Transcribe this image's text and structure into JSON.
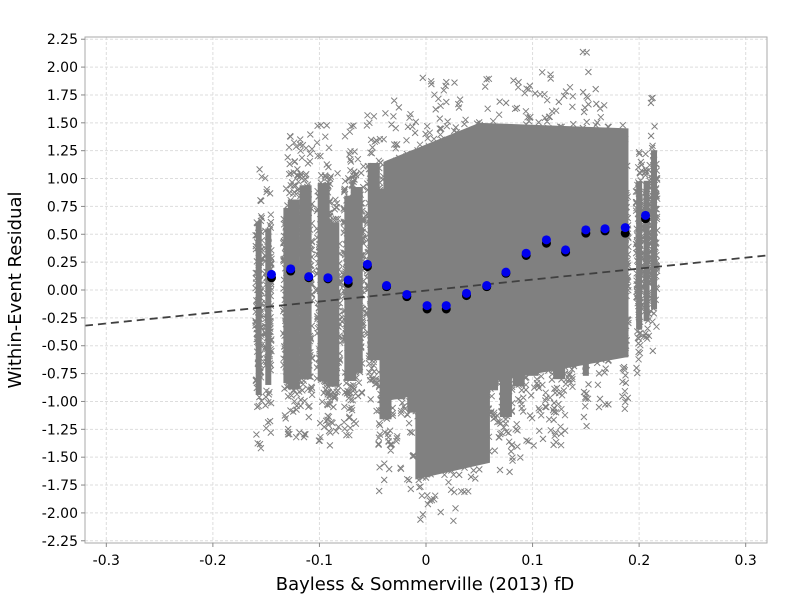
{
  "chart_data": {
    "type": "scatter",
    "title": "",
    "xlabel": "Bayless & Sommerville (2013) fD",
    "ylabel": "Within-Event Residual",
    "xlim": [
      -0.32,
      0.32
    ],
    "ylim": [
      -2.27,
      2.27
    ],
    "x_ticks": [
      -0.3,
      -0.2,
      -0.1,
      0,
      0.1,
      0.2,
      0.3
    ],
    "x_tick_labels": [
      "-0.3",
      "-0.2",
      "-0.1",
      "0",
      "0.1",
      "0.2",
      "0.3"
    ],
    "y_ticks": [
      -2.25,
      -2.0,
      -1.75,
      -1.5,
      -1.25,
      -1.0,
      -0.75,
      -0.5,
      -0.25,
      0.0,
      0.25,
      0.5,
      0.75,
      1.0,
      1.25,
      1.5,
      1.75,
      2.0,
      2.25
    ],
    "y_tick_labels": [
      "-2.25",
      "-2.00",
      "-1.75",
      "-1.50",
      "-1.25",
      "-1.00",
      "-0.75",
      "-0.50",
      "-0.25",
      "0.00",
      "0.25",
      "0.50",
      "0.75",
      "1.00",
      "1.25",
      "1.50",
      "1.75",
      "2.00",
      "2.25"
    ],
    "grid": true,
    "legend": "none",
    "colors": {
      "raw_points": "#808080",
      "binned_means_black": "#000000",
      "binned_means_blue": "#0000ee",
      "trend_line": "#404040",
      "grid": "#dddddd",
      "frame": "#aaaaaa"
    },
    "series": [
      {
        "marker": "x",
        "role": "raw within-event residuals",
        "bands": [
          {
            "x": -0.157,
            "ylow": -1.46,
            "yhigh": 1.13
          },
          {
            "x": -0.148,
            "ylow": -1.32,
            "yhigh": 1.02
          },
          {
            "x": -0.131,
            "ylow": -1.36,
            "yhigh": 1.26
          },
          {
            "x": -0.124,
            "ylow": -1.46,
            "yhigh": 1.38
          },
          {
            "x": -0.113,
            "ylow": -1.38,
            "yhigh": 1.52
          },
          {
            "x": -0.096,
            "ylow": -1.41,
            "yhigh": 1.55
          },
          {
            "x": -0.087,
            "ylow": -1.36,
            "yhigh": 1.1
          },
          {
            "x": -0.071,
            "ylow": -1.37,
            "yhigh": 1.4
          },
          {
            "x": -0.065,
            "ylow": -1.3,
            "yhigh": 1.48
          },
          {
            "x": -0.049,
            "ylow": -1.22,
            "yhigh": 1.73
          },
          {
            "x": -0.038,
            "ylow": -1.85,
            "yhigh": 1.6
          },
          {
            "x": -0.025,
            "ylow": -1.65,
            "yhigh": 1.7
          },
          {
            "x": -0.012,
            "ylow": -1.8,
            "yhigh": 1.7
          },
          {
            "x": 0.0,
            "ylow": -2.12,
            "yhigh": 1.93
          },
          {
            "x": 0.012,
            "ylow": -2.05,
            "yhigh": 1.85
          },
          {
            "x": 0.025,
            "ylow": -2.12,
            "yhigh": 1.88
          },
          {
            "x": 0.037,
            "ylow": -1.9,
            "yhigh": 1.73
          },
          {
            "x": 0.05,
            "ylow": -1.78,
            "yhigh": 1.8
          },
          {
            "x": 0.062,
            "ylow": -1.6,
            "yhigh": 1.9
          },
          {
            "x": 0.075,
            "ylow": -1.9,
            "yhigh": 1.9
          },
          {
            "x": 0.087,
            "ylow": -1.55,
            "yhigh": 1.88
          },
          {
            "x": 0.1,
            "ylow": -1.45,
            "yhigh": 1.95
          },
          {
            "x": 0.112,
            "ylow": -1.35,
            "yhigh": 1.98
          },
          {
            "x": 0.125,
            "ylow": -1.45,
            "yhigh": 1.8
          },
          {
            "x": 0.137,
            "ylow": -1.3,
            "yhigh": 1.9
          },
          {
            "x": 0.15,
            "ylow": -1.5,
            "yhigh": 2.15
          },
          {
            "x": 0.162,
            "ylow": -1.1,
            "yhigh": 1.95
          },
          {
            "x": 0.17,
            "ylow": -1.12,
            "yhigh": 1.75
          },
          {
            "x": 0.187,
            "ylow": -1.13,
            "yhigh": 1.5
          },
          {
            "x": 0.2,
            "ylow": -0.8,
            "yhigh": 1.42
          },
          {
            "x": 0.207,
            "ylow": -0.7,
            "yhigh": 1.4
          },
          {
            "x": 0.214,
            "ylow": -0.65,
            "yhigh": 1.73
          }
        ]
      },
      {
        "marker": "circle",
        "role": "binned means (black)",
        "x": [
          -0.145,
          -0.127,
          -0.11,
          -0.092,
          -0.073,
          -0.055,
          -0.037,
          -0.018,
          0.001,
          0.019,
          0.038,
          0.057,
          0.075,
          0.094,
          0.113,
          0.131,
          0.15,
          0.168,
          0.187,
          0.206
        ],
        "y": [
          0.11,
          0.17,
          0.11,
          0.1,
          0.06,
          0.21,
          0.03,
          -0.06,
          -0.17,
          -0.17,
          -0.05,
          0.03,
          0.15,
          0.31,
          0.42,
          0.34,
          0.51,
          0.53,
          0.51,
          0.64
        ]
      },
      {
        "marker": "circle",
        "role": "binned means (blue)",
        "x": [
          -0.145,
          -0.127,
          -0.11,
          -0.092,
          -0.073,
          -0.055,
          -0.037,
          -0.018,
          0.001,
          0.019,
          0.038,
          0.057,
          0.075,
          0.094,
          0.113,
          0.131,
          0.15,
          0.168,
          0.187,
          0.206
        ],
        "y": [
          0.14,
          0.19,
          0.12,
          0.11,
          0.09,
          0.23,
          0.04,
          -0.04,
          -0.14,
          -0.14,
          -0.03,
          0.04,
          0.16,
          0.33,
          0.45,
          0.36,
          0.54,
          0.55,
          0.56,
          0.67
        ]
      },
      {
        "marker": "dashed-line",
        "role": "fitted trend",
        "x": [
          -0.32,
          0.32
        ],
        "y": [
          -0.32,
          0.31
        ]
      }
    ]
  }
}
